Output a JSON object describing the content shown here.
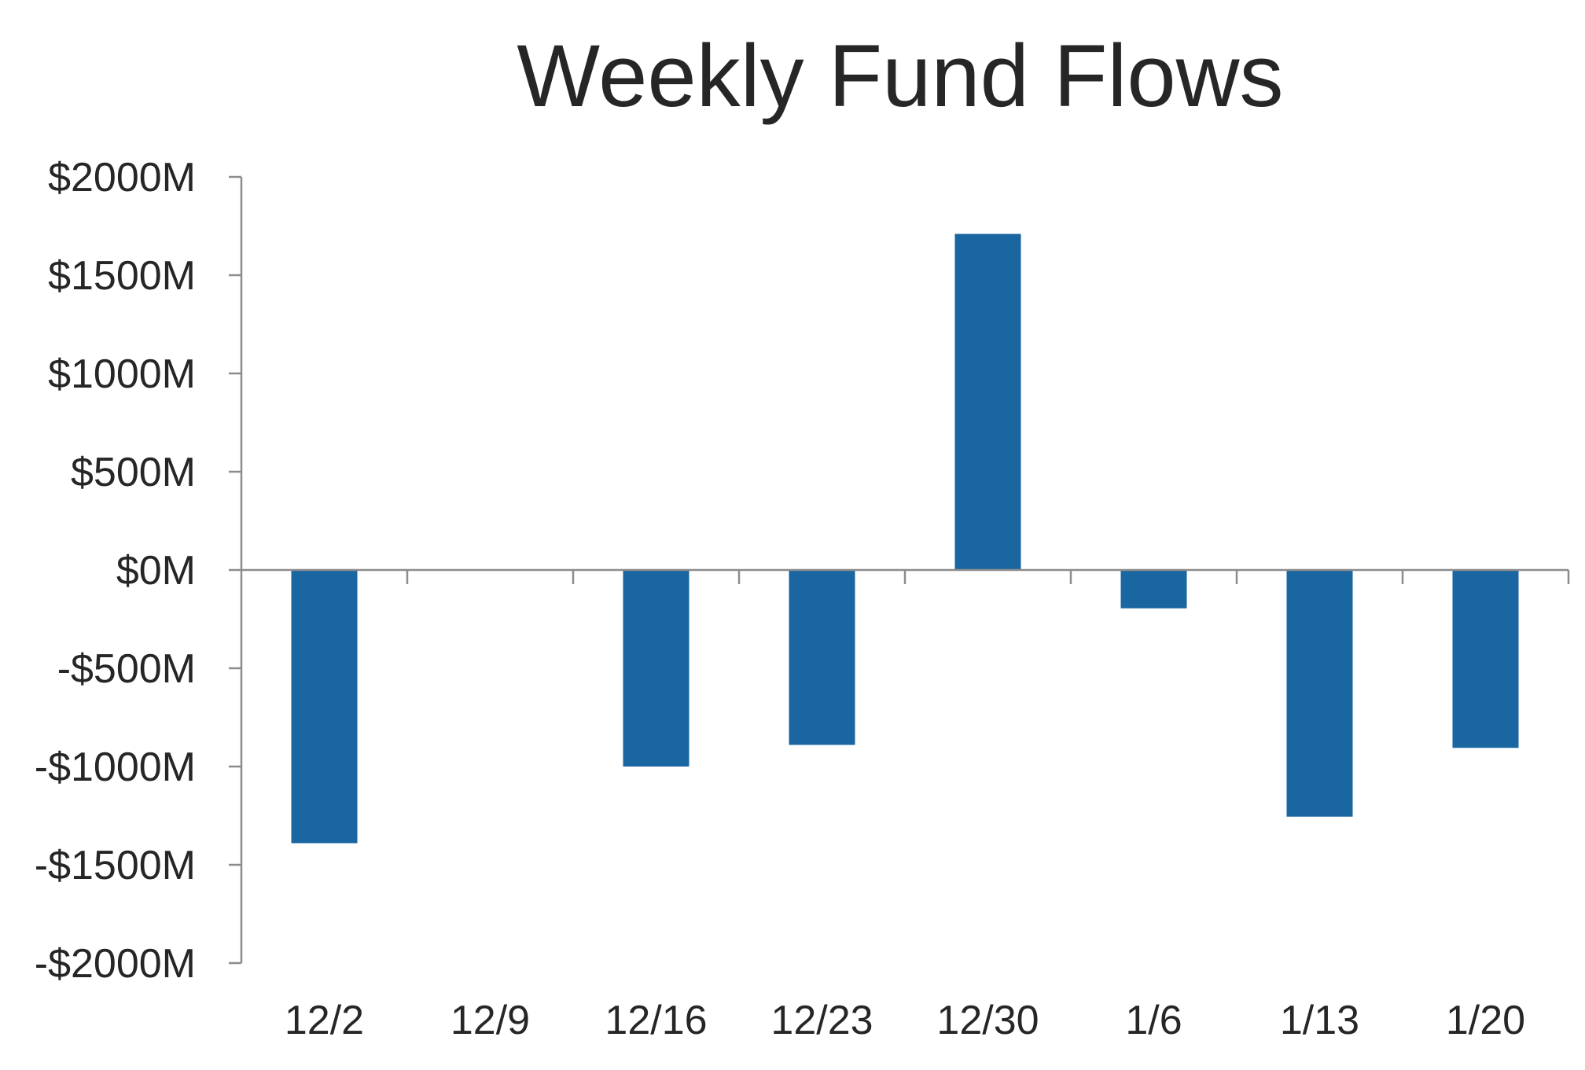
{
  "colors": {
    "bar": "#1a66a0",
    "axis": "#8c8c8c",
    "text": "#262626"
  },
  "chart_data": {
    "type": "bar",
    "title": "Weekly Fund Flows",
    "categories": [
      "12/2",
      "12/9",
      "12/16",
      "12/23",
      "12/30",
      "1/6",
      "1/13",
      "1/20"
    ],
    "series": [
      {
        "values": [
          -1390,
          0,
          -1000,
          -890,
          1710,
          -195,
          -1255,
          -905
        ]
      }
    ],
    "ylim": [
      -2000,
      2000
    ],
    "yticks": [
      2000,
      1500,
      1000,
      500,
      0,
      -500,
      -1000,
      -1500,
      -2000
    ],
    "ytick_labels": [
      "$2000M",
      "$1500M",
      "$1000M",
      "$500M",
      "$0M",
      "-$500M",
      "-$1000M",
      "-$1500M",
      "-$2000M"
    ],
    "xlabel": "",
    "ylabel": "",
    "grid": false,
    "legend": "none"
  }
}
